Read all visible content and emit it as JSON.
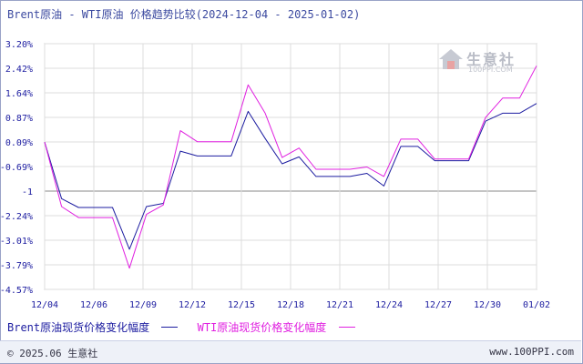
{
  "title": "Brent原油 - WTI原油 价格趋势比较(2024-12-04 - 2025-01-02)",
  "logo": {
    "name": "生意社",
    "url": "100PPI.COM"
  },
  "legend": [
    {
      "label": "Brent原油现货价格变化幅度",
      "color": "#1c1ca0"
    },
    {
      "label": "WTI原油现货价格变化幅度",
      "color": "#e020e0"
    }
  ],
  "footer": {
    "left": "© 2025.06 生意社",
    "right": "www.100PPI.com"
  },
  "chart_data": {
    "type": "line",
    "x_tick_labels": [
      "12/04",
      "12/06",
      "12/09",
      "12/12",
      "12/15",
      "12/18",
      "12/21",
      "12/24",
      "12/27",
      "12/30",
      "01/02"
    ],
    "y_tick_labels": [
      "3.20%",
      "2.42%",
      "1.64%",
      "0.87%",
      "0.09%",
      "-0.69%",
      "-1",
      "-2.24%",
      "-3.01%",
      "-3.79%",
      "-4.57%"
    ],
    "ylim": [
      -4.57,
      3.2
    ],
    "grid": true,
    "x": [
      "12/04",
      "12/05",
      "12/06",
      "12/07",
      "12/08",
      "12/09",
      "12/10",
      "12/11",
      "12/12",
      "12/13",
      "12/14",
      "12/15",
      "12/16",
      "12/17",
      "12/18",
      "12/19",
      "12/20",
      "12/21",
      "12/22",
      "12/23",
      "12/24",
      "12/25",
      "12/26",
      "12/27",
      "12/28",
      "12/29",
      "12/30",
      "12/31",
      "01/01",
      "01/02"
    ],
    "series": [
      {
        "name": "Brent原油现货价格变化幅度",
        "color": "#1c1ca0",
        "values": [
          0.09,
          -1.7,
          -1.98,
          -1.98,
          -1.98,
          -3.3,
          -1.95,
          -1.85,
          -0.2,
          -0.35,
          -0.35,
          -0.35,
          1.06,
          0.2,
          -0.6,
          -0.38,
          -1.0,
          -1.0,
          -1.0,
          -0.9,
          -1.3,
          -0.05,
          -0.05,
          -0.5,
          -0.5,
          -0.5,
          0.75,
          1.0,
          1.0,
          1.31
        ]
      },
      {
        "name": "WTI原油现货价格变化幅度",
        "color": "#e020e0",
        "values": [
          0.09,
          -1.95,
          -2.3,
          -2.3,
          -2.3,
          -3.9,
          -2.2,
          -1.9,
          0.45,
          0.1,
          0.1,
          0.1,
          1.9,
          1.0,
          -0.4,
          -0.1,
          -0.77,
          -0.77,
          -0.77,
          -0.7,
          -1.0,
          0.18,
          0.18,
          -0.45,
          -0.45,
          -0.45,
          0.87,
          1.48,
          1.48,
          2.5
        ]
      }
    ]
  }
}
